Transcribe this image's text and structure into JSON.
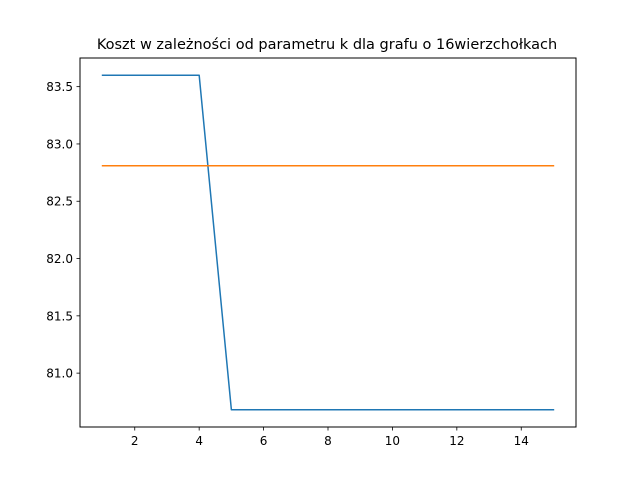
{
  "chart_data": {
    "type": "line",
    "title": "Koszt w zależności od parametru k dla grafu o 16wierzchołkach",
    "xlabel": "",
    "ylabel": "",
    "xlim": [
      0.3,
      15.7
    ],
    "ylim": [
      80.53,
      83.75
    ],
    "x_ticks": [
      2,
      4,
      6,
      8,
      10,
      12,
      14
    ],
    "x_tick_labels": [
      "2",
      "4",
      "6",
      "8",
      "10",
      "12",
      "14"
    ],
    "y_ticks": [
      81.0,
      81.5,
      82.0,
      82.5,
      83.0,
      83.5
    ],
    "y_tick_labels": [
      "81.0",
      "81.5",
      "82.0",
      "82.5",
      "83.0",
      "83.5"
    ],
    "grid": false,
    "legend": "none",
    "series": [
      {
        "color": "#1f77b4",
        "x": [
          1,
          2,
          3,
          4,
          5,
          6,
          7,
          8,
          9,
          10,
          11,
          12,
          13,
          14,
          15
        ],
        "y": [
          83.6,
          83.6,
          83.6,
          83.6,
          80.68,
          80.68,
          80.68,
          80.68,
          80.68,
          80.68,
          80.68,
          80.68,
          80.68,
          80.68,
          80.68
        ]
      },
      {
        "color": "#ff7f0e",
        "x": [
          1,
          15
        ],
        "y": [
          82.81,
          82.81
        ]
      }
    ]
  }
}
